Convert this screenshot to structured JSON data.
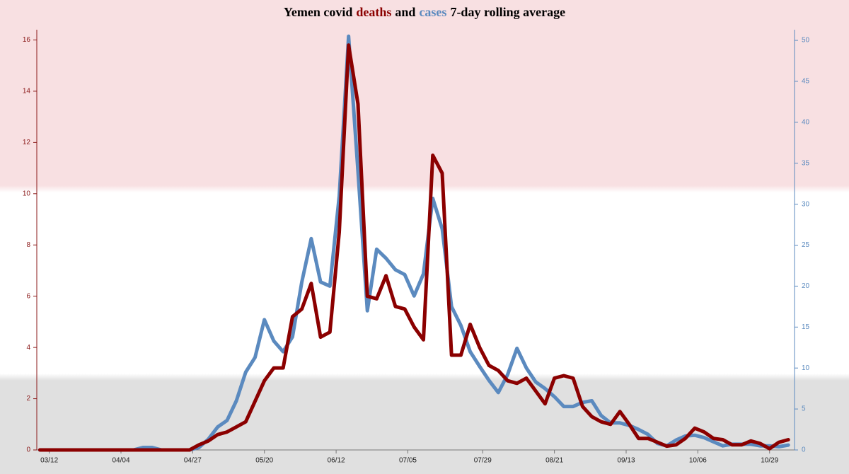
{
  "chart_data": {
    "type": "line",
    "title": [
      {
        "text": "Yemen covid"
      },
      {
        "text": "deaths",
        "color": "#8b0000"
      },
      {
        "text": "and"
      },
      {
        "text": "cases",
        "color": "#5b8abf"
      },
      {
        "text": "7-day rolling average"
      }
    ],
    "x": [
      69,
      72,
      75,
      78,
      81,
      84,
      87,
      90,
      93,
      96,
      99,
      102,
      105,
      108,
      111,
      114,
      117,
      120,
      123,
      126,
      129,
      132,
      135,
      138,
      141,
      144,
      147,
      150,
      153,
      156,
      159,
      162,
      165,
      168,
      171,
      174,
      177,
      180,
      183,
      186,
      189,
      192,
      195,
      198,
      201,
      204,
      207,
      210,
      213,
      216,
      219,
      222,
      225,
      228,
      231,
      234,
      237,
      240,
      243,
      246,
      249,
      252,
      255,
      258,
      261,
      264,
      267,
      270,
      273,
      276,
      279,
      282,
      285,
      288,
      291,
      294,
      297,
      300,
      303,
      306,
      309
    ],
    "xlim": [
      68,
      311
    ],
    "xticks": [
      {
        "value": 72,
        "label": "03/12"
      },
      {
        "value": 95,
        "label": "04/04"
      },
      {
        "value": 118,
        "label": "04/27"
      },
      {
        "value": 141,
        "label": "05/20"
      },
      {
        "value": 164,
        "label": "06/12"
      },
      {
        "value": 187,
        "label": "07/05"
      },
      {
        "value": 211,
        "label": "07/29"
      },
      {
        "value": 234,
        "label": "08/21"
      },
      {
        "value": 257,
        "label": "09/13"
      },
      {
        "value": 280,
        "label": "10/06"
      },
      {
        "value": 303,
        "label": "10/29"
      }
    ],
    "ylim": [
      0,
      16.4
    ],
    "yticks": [
      0,
      2,
      4,
      6,
      8,
      10,
      12,
      14,
      16
    ],
    "y2lim": [
      0,
      51.3
    ],
    "y2ticks": [
      0,
      5,
      10,
      15,
      20,
      25,
      30,
      35,
      40,
      45,
      50
    ],
    "series": [
      {
        "name": "cases",
        "color": "#5b8abf",
        "axis": "y2",
        "values": [
          0,
          0,
          0,
          0,
          0,
          0,
          0,
          0,
          0,
          0,
          0,
          0.3,
          0.3,
          0,
          0,
          0,
          0,
          0.3,
          1.3,
          2.8,
          3.6,
          6.0,
          9.5,
          11.3,
          15.9,
          13.3,
          12.0,
          13.8,
          20.5,
          25.8,
          20.5,
          20,
          31,
          50.5,
          34,
          17,
          24.5,
          23.4,
          22,
          21.4,
          18.8,
          21.5,
          30.7,
          27,
          17.5,
          15.2,
          12,
          10.2,
          8.5,
          7.0,
          9.2,
          12.4,
          10,
          8.3,
          7.5,
          6.5,
          5.3,
          5.3,
          5.8,
          6.0,
          4.2,
          3.3,
          3.3,
          3.0,
          2.5,
          1.9,
          0.8,
          0.5,
          1.2,
          1.7,
          1.8,
          1.5,
          1.0,
          0.5,
          0.7,
          0.7,
          0.7,
          0.5,
          0.5,
          0.4,
          0.6
        ]
      },
      {
        "name": "deaths",
        "color": "#8b0000",
        "values": [
          0,
          0,
          0,
          0,
          0,
          0,
          0,
          0,
          0,
          0,
          0,
          0,
          0,
          0,
          0,
          0,
          0,
          0.2,
          0.35,
          0.6,
          0.7,
          0.9,
          1.1,
          1.9,
          2.7,
          3.2,
          3.2,
          5.2,
          5.5,
          6.5,
          4.4,
          4.6,
          8.5,
          15.8,
          13.5,
          6,
          5.9,
          6.8,
          5.6,
          5.5,
          4.8,
          4.3,
          11.5,
          10.8,
          3.7,
          3.7,
          4.9,
          4.0,
          3.3,
          3.1,
          2.7,
          2.6,
          2.8,
          2.3,
          1.8,
          2.8,
          2.9,
          2.8,
          1.7,
          1.3,
          1.1,
          1.0,
          1.5,
          1.0,
          0.45,
          0.45,
          0.3,
          0.15,
          0.2,
          0.45,
          0.85,
          0.7,
          0.45,
          0.4,
          0.2,
          0.2,
          0.35,
          0.25,
          0.05,
          0.3,
          0.4
        ]
      }
    ],
    "ycolor": "#8b1a1a",
    "y2color": "#5b8abf"
  }
}
